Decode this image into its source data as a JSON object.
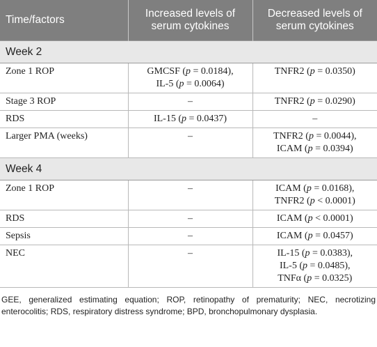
{
  "headers": {
    "col1": "Time/factors",
    "col2": "Increased levels of serum cytokines",
    "col3": "Decreased levels of serum cytokines"
  },
  "sections": [
    {
      "label": "Week 2",
      "rows": [
        {
          "factor": "Zone 1 ROP",
          "increased": [
            "GMCSF (p = 0.0184),",
            "IL-5 (p = 0.0064)"
          ],
          "decreased": [
            "TNFR2 (p = 0.0350)"
          ]
        },
        {
          "factor": "Stage 3 ROP",
          "increased": [
            "–"
          ],
          "decreased": [
            "TNFR2 (p = 0.0290)"
          ]
        },
        {
          "factor": "RDS",
          "increased": [
            "IL-15 (p = 0.0437)"
          ],
          "decreased": [
            "–"
          ]
        },
        {
          "factor": "Larger PMA (weeks)",
          "increased": [
            "–"
          ],
          "decreased": [
            "TNFR2 (p = 0.0044),",
            "ICAM (p = 0.0394)"
          ]
        }
      ]
    },
    {
      "label": "Week 4",
      "rows": [
        {
          "factor": "Zone 1 ROP",
          "increased": [
            "–"
          ],
          "decreased": [
            "ICAM (p = 0.0168),",
            "TNFR2 (p < 0.0001)"
          ]
        },
        {
          "factor": "RDS",
          "increased": [
            "–"
          ],
          "decreased": [
            "ICAM (p < 0.0001)"
          ]
        },
        {
          "factor": "Sepsis",
          "increased": [
            "–"
          ],
          "decreased": [
            "ICAM (p = 0.0457)"
          ]
        },
        {
          "factor": "NEC",
          "increased": [
            "–"
          ],
          "decreased": [
            "IL-15 (p = 0.0383),",
            "IL-5 (p = 0.0485),",
            "TNFα (p = 0.0325)"
          ]
        }
      ]
    }
  ],
  "footnote": "GEE, generalized estimating equation; ROP, retinopathy of prematurity; NEC, necrotizing enterocolitis; RDS, respiratory distress syndrome; BPD, bronchopulmonary dysplasia."
}
